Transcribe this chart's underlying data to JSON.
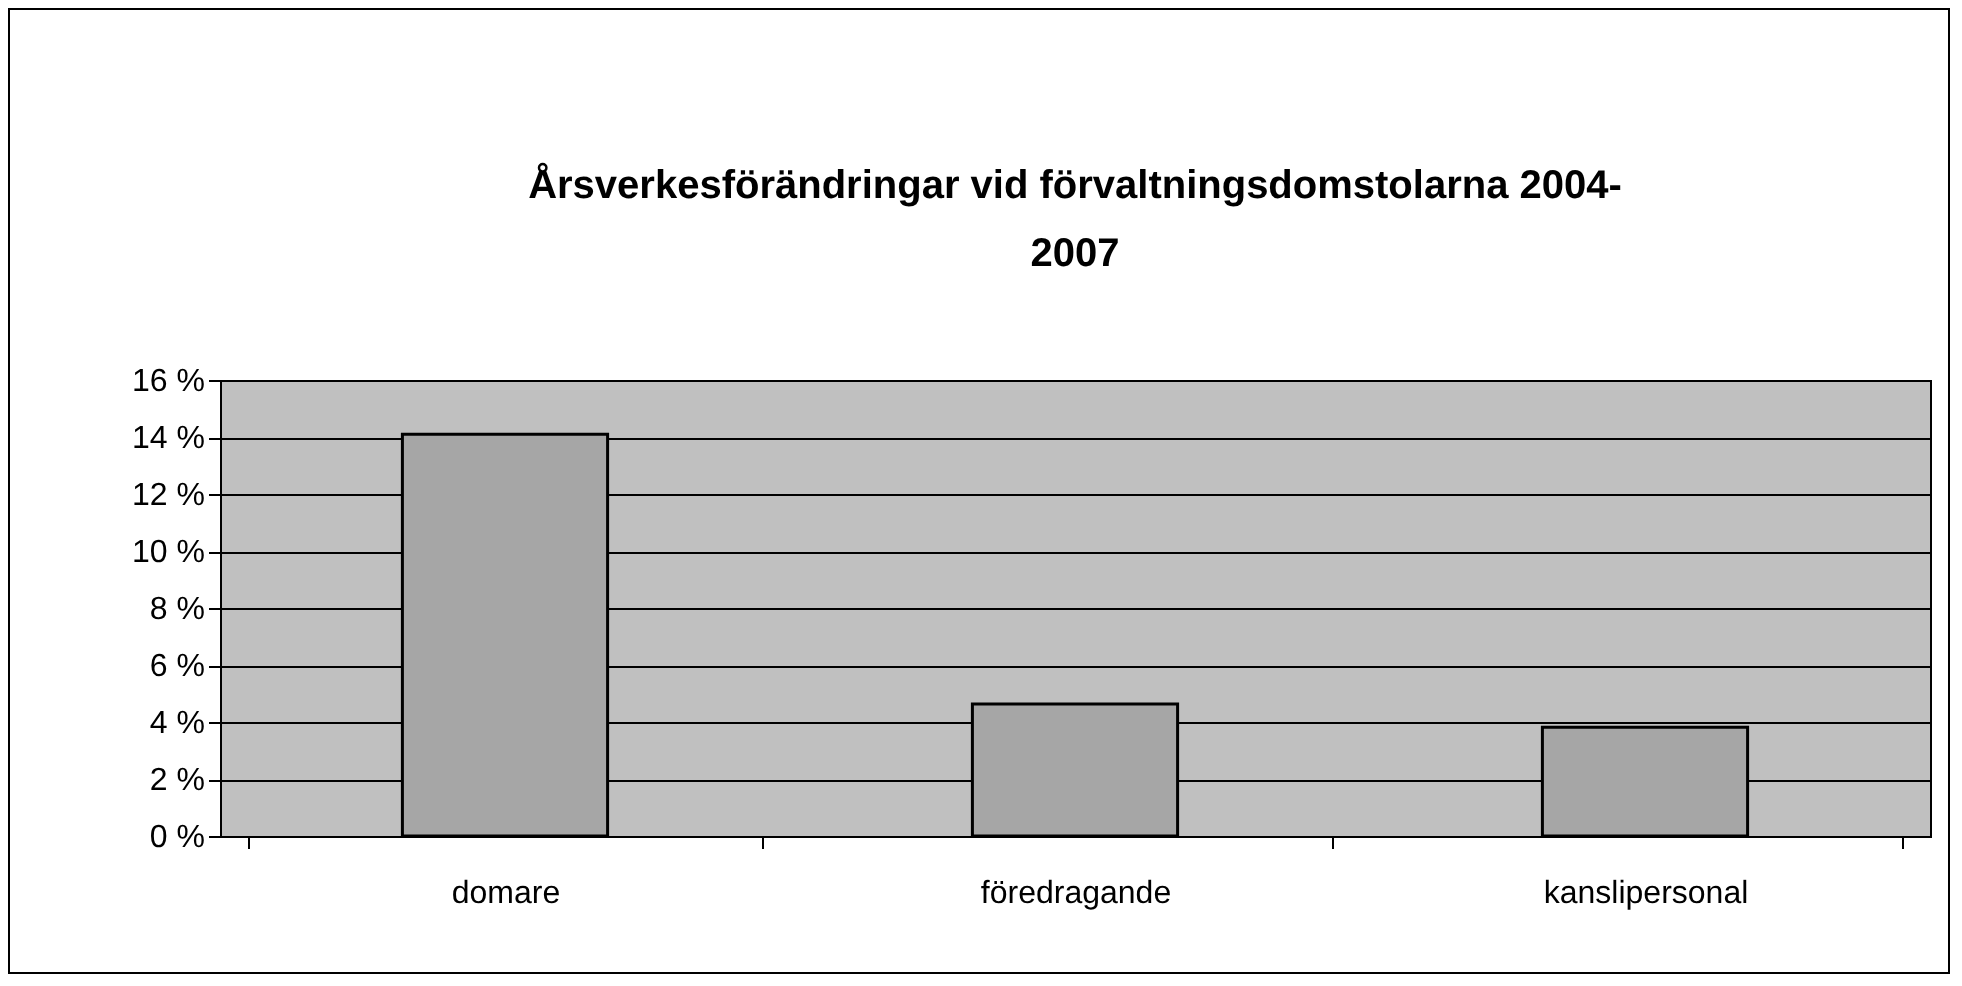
{
  "chart_data": {
    "type": "bar",
    "title": "Årsverkesförändringar vid förvaltningsdomstolarna 2004-2007",
    "categories": [
      "domare",
      "föredragande",
      "kanslipersonal"
    ],
    "values": [
      14.1,
      4.63,
      3.82
    ],
    "color": "#a6a6a6",
    "ylim": [
      0,
      16
    ],
    "yticks": [
      {
        "value": 0,
        "label": "0 %"
      },
      {
        "value": 2,
        "label": "2 %"
      },
      {
        "value": 4,
        "label": "4 %"
      },
      {
        "value": 6,
        "label": "6 %"
      },
      {
        "value": 8,
        "label": "8 %"
      },
      {
        "value": 10,
        "label": "10 %"
      },
      {
        "value": 12,
        "label": "12 %"
      },
      {
        "value": 14,
        "label": "14 %"
      },
      {
        "value": 16,
        "label": "16 %"
      }
    ],
    "grid": "y",
    "legend": false
  }
}
